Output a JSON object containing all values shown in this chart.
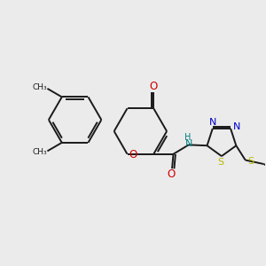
{
  "background_color": "#ebebeb",
  "bond_color": "#1a1a1a",
  "oxygen_color": "#cc0000",
  "nitrogen_color": "#0000cc",
  "sulfur_color": "#b8b800",
  "nh_color": "#008080",
  "figsize": [
    3.0,
    3.0
  ],
  "dpi": 100,
  "xlim": [
    0,
    10
  ],
  "ylim": [
    0,
    10
  ]
}
